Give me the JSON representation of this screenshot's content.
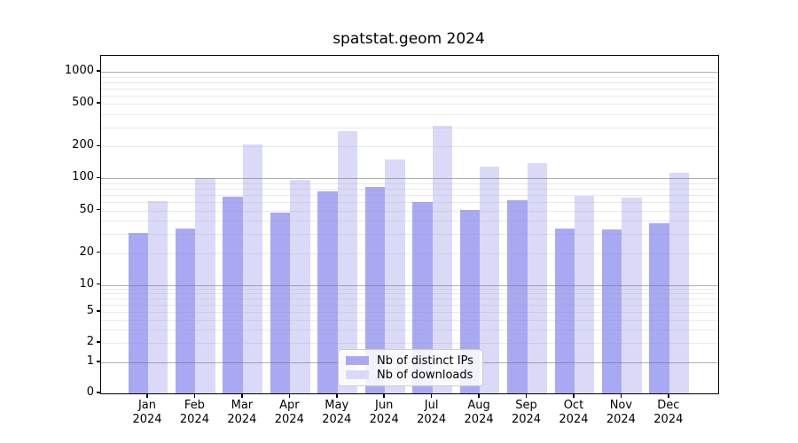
{
  "title": "spatstat.geom 2024",
  "legend": {
    "items": [
      {
        "label": "Nb of distinct IPs",
        "color": "#a9a9f3"
      },
      {
        "label": "Nb of downloads",
        "color": "#dadaf8"
      }
    ]
  },
  "chart_data": {
    "type": "bar",
    "title": "spatstat.geom 2024",
    "months": [
      "Jan",
      "Feb",
      "Mar",
      "Apr",
      "May",
      "Jun",
      "Jul",
      "Aug",
      "Sep",
      "Oct",
      "Nov",
      "Dec"
    ],
    "year": "2024",
    "series": [
      {
        "name": "Nb of distinct IPs",
        "color": "#a9a9f3",
        "values": [
          31,
          34,
          67,
          48,
          76,
          84,
          60,
          51,
          62,
          34,
          33,
          38
        ]
      },
      {
        "name": "Nb of downloads",
        "color": "#dadaf8",
        "values": [
          61,
          101,
          207,
          97,
          277,
          151,
          311,
          129,
          139,
          69,
          66,
          114
        ]
      }
    ],
    "y_axis": {
      "scale": "log-like (symlog, linear near zero)",
      "tick_labels": [
        "1000",
        "500",
        "200",
        "100",
        "50",
        "20",
        "10",
        "5",
        "2",
        "1",
        "0"
      ],
      "major_grid_values": [
        1000,
        100,
        10,
        1
      ],
      "grid": "horizontal major + minor gridlines drawn over bars"
    },
    "x_axis": {
      "tick_labels_line2": "2024"
    },
    "legend_position": "inside axes, lower center-left",
    "colors": {
      "bar_dark": "#a9a9f3",
      "bar_light": "#dadaf8",
      "grid_major": "#6e6e6e",
      "grid_minor": "#d6d6d6",
      "spine": "#000000"
    }
  }
}
